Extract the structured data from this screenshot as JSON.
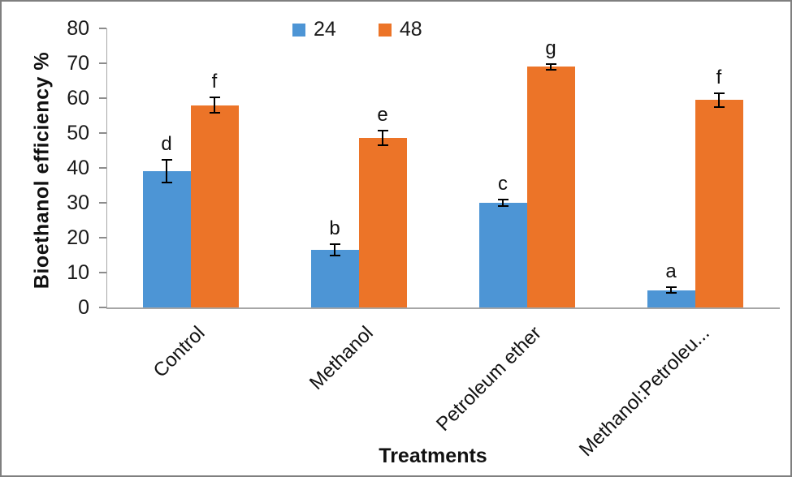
{
  "chart_data": {
    "type": "bar",
    "title": "",
    "xlabel": "Treatments",
    "ylabel": "Bioethanol efficiency  %",
    "ylim": [
      0,
      80
    ],
    "ytick_step": 10,
    "ytick_labels": [
      "0",
      "10",
      "20",
      "30",
      "40",
      "50",
      "60",
      "70",
      "80"
    ],
    "categories": [
      "Control",
      "Methanol",
      "Petroleum ether",
      "Methanol:Petroleu..."
    ],
    "series": [
      {
        "name": "24",
        "color": "#4D95D5",
        "values": [
          39,
          16.5,
          30,
          5
        ],
        "errors": [
          3.3,
          1.6,
          1.0,
          0.7
        ],
        "letter_labels": [
          "d",
          "b",
          "c",
          "a"
        ]
      },
      {
        "name": "48",
        "color": "#EC7428",
        "values": [
          58,
          48.6,
          69,
          59.5
        ],
        "errors": [
          2.3,
          2.2,
          0.8,
          2.0
        ],
        "letter_labels": [
          "f",
          "e",
          "g",
          "f"
        ]
      }
    ],
    "legend_position": "top",
    "grid": false,
    "error_bars": true
  },
  "colors": {
    "axis_line": "#A6A6A6",
    "tick_mark": "#8C8C8C",
    "text": "#111111",
    "frame_border": "#7F7F7F",
    "error_bar": "#000000"
  }
}
